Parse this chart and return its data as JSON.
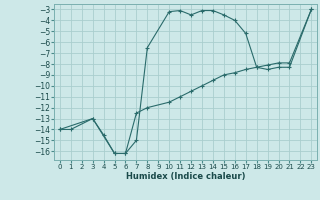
{
  "xlabel": "Humidex (Indice chaleur)",
  "background_color": "#cde8e8",
  "grid_color": "#aacece",
  "line_color": "#2a6b6b",
  "xlim": [
    -0.5,
    23.5
  ],
  "ylim": [
    -16.8,
    -2.5
  ],
  "xticks": [
    0,
    1,
    2,
    3,
    4,
    5,
    6,
    7,
    8,
    9,
    10,
    11,
    12,
    13,
    14,
    15,
    16,
    17,
    18,
    19,
    20,
    21,
    22,
    23
  ],
  "yticks": [
    -3,
    -4,
    -5,
    -6,
    -7,
    -8,
    -9,
    -10,
    -11,
    -12,
    -13,
    -14,
    -15,
    -16
  ],
  "curve1_x": [
    0,
    1,
    3,
    4,
    5,
    6,
    7,
    8,
    10,
    11,
    12,
    13,
    14,
    15,
    16,
    17,
    18,
    19,
    20,
    21,
    23
  ],
  "curve1_y": [
    -14,
    -14,
    -13,
    -14.5,
    -16.2,
    -16.2,
    -15.0,
    -6.5,
    -3.2,
    -3.1,
    -3.5,
    -3.1,
    -3.1,
    -3.5,
    -4.0,
    -5.2,
    -8.3,
    -8.5,
    -8.3,
    -8.3,
    -3.0
  ],
  "curve2_x": [
    0,
    3,
    5,
    6,
    7,
    8,
    10,
    11,
    12,
    13,
    14,
    15,
    16,
    17,
    18,
    19,
    20,
    21,
    23
  ],
  "curve2_y": [
    -14,
    -13,
    -16.2,
    -16.2,
    -12.5,
    -12.0,
    -11.5,
    -11.0,
    -10.5,
    -10.0,
    -9.5,
    -9.0,
    -8.8,
    -8.5,
    -8.3,
    -8.1,
    -7.9,
    -7.9,
    -3.0
  ]
}
